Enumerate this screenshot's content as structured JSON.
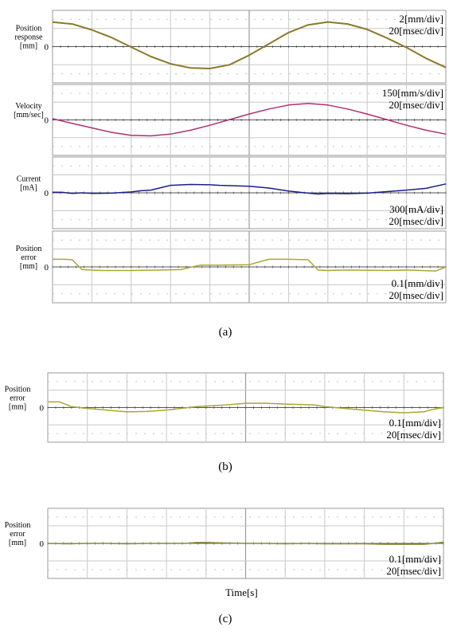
{
  "figure": {
    "captions": [
      "(a)",
      "(b)",
      "(c)"
    ],
    "x_axis_label": "Time[s]"
  },
  "colors": {
    "grid": "#c8c8c8",
    "dots": "#c4c4c4",
    "zero_axis": "#555555",
    "frame": "#999999",
    "position_response": "#8b7a2a",
    "velocity": "#b0306f",
    "current": "#1a1f8a",
    "position_error": "#a8a832"
  },
  "chart_data": [
    {
      "id": "a1",
      "type": "line",
      "ylabel": [
        "Position",
        "response",
        "[mm]"
      ],
      "zero_label": "0",
      "scale_labels": [
        "2[mm/div]",
        "20[msec/div]"
      ],
      "scale_pos": "top-right",
      "x_unit": "msec",
      "xlim": [
        0,
        200
      ],
      "y_unit": "mm",
      "ylim": [
        -4,
        4
      ],
      "series": [
        {
          "color": "#8b7a2a",
          "width": 2,
          "x": [
            0,
            10,
            20,
            30,
            40,
            50,
            60,
            70,
            80,
            90,
            100,
            110,
            120,
            130,
            140,
            150,
            160,
            170,
            180,
            190,
            200
          ],
          "y": [
            2.7,
            2.5,
            1.85,
            1.0,
            -0.05,
            -1.1,
            -1.9,
            -2.35,
            -2.42,
            -2.0,
            -0.95,
            0.3,
            1.55,
            2.4,
            2.72,
            2.5,
            1.9,
            0.95,
            -0.1,
            -1.3,
            -2.3
          ]
        }
      ]
    },
    {
      "id": "a2",
      "type": "line",
      "ylabel": [
        "Velocity",
        "[mm/sec]"
      ],
      "zero_label": "0",
      "scale_labels": [
        "150[mm/s/div]",
        "20[msec/div]"
      ],
      "scale_pos": "top-right",
      "x_unit": "msec",
      "xlim": [
        0,
        200
      ],
      "y_unit": "mm/s",
      "ylim": [
        -600,
        600
      ],
      "series": [
        {
          "color": "#b0306f",
          "width": 1.5,
          "x": [
            0,
            10,
            20,
            30,
            40,
            50,
            60,
            70,
            80,
            90,
            100,
            110,
            120,
            130,
            140,
            150,
            160,
            170,
            180,
            190,
            200
          ],
          "y": [
            20,
            -60,
            -135,
            -210,
            -262,
            -270,
            -240,
            -175,
            -90,
            5,
            100,
            185,
            252,
            278,
            252,
            185,
            100,
            5,
            -90,
            -175,
            -240
          ]
        }
      ]
    },
    {
      "id": "a3",
      "type": "line",
      "ylabel": [
        "Current",
        "[mA]"
      ],
      "zero_label": "0",
      "scale_labels": [
        "300[mA/div]",
        "20[msec/div]"
      ],
      "scale_pos": "bottom-right",
      "x_unit": "msec",
      "xlim": [
        0,
        200
      ],
      "y_unit": "mA",
      "ylim": [
        -1200,
        1200
      ],
      "series": [
        {
          "color": "#1a1f8a",
          "width": 1.5,
          "x": [
            0,
            5,
            10,
            15,
            20,
            30,
            40,
            45,
            50,
            60,
            70,
            80,
            85,
            90,
            100,
            110,
            120,
            130,
            135,
            140,
            150,
            160,
            170,
            180,
            190,
            200
          ],
          "y": [
            20,
            15,
            -20,
            0,
            -20,
            -10,
            30,
            70,
            90,
            250,
            280,
            270,
            250,
            240,
            220,
            160,
            60,
            -10,
            -40,
            -20,
            -30,
            -10,
            40,
            90,
            150,
            300
          ]
        }
      ]
    },
    {
      "id": "a4",
      "type": "line",
      "ylabel": [
        "Position",
        "error",
        "[mm]"
      ],
      "zero_label": "0",
      "scale_labels": [
        "0.1[mm/div]",
        "20[msec/div]"
      ],
      "scale_pos": "bottom-right",
      "x_unit": "msec",
      "xlim": [
        0,
        200
      ],
      "y_unit": "mm",
      "ylim": [
        -0.4,
        0.4
      ],
      "series": [
        {
          "color": "#a8a832",
          "width": 1.5,
          "x": [
            0,
            6,
            10,
            15,
            25,
            40,
            55,
            65,
            75,
            85,
            100,
            110,
            115,
            120,
            130,
            135,
            140,
            150,
            170,
            180,
            195,
            200
          ],
          "y": [
            0.085,
            0.085,
            0.08,
            -0.03,
            -0.04,
            -0.04,
            -0.035,
            -0.03,
            0.02,
            0.02,
            0.025,
            0.085,
            0.085,
            0.085,
            0.08,
            -0.035,
            -0.04,
            -0.035,
            -0.04,
            -0.035,
            -0.045,
            0.0
          ]
        }
      ]
    },
    {
      "id": "b",
      "type": "line",
      "ylabel": [
        "Position",
        "error",
        "[mm]"
      ],
      "zero_label": "0",
      "scale_labels": [
        "0.1[mm/div]",
        "20[msec/div]"
      ],
      "scale_pos": "bottom-right",
      "x_unit": "msec",
      "xlim": [
        0,
        200
      ],
      "y_unit": "mm",
      "ylim": [
        -0.4,
        0.4
      ],
      "series": [
        {
          "color": "#a8a832",
          "width": 1.5,
          "x": [
            0,
            6,
            12,
            20,
            40,
            50,
            60,
            75,
            90,
            100,
            110,
            120,
            135,
            140,
            150,
            160,
            170,
            180,
            190,
            195,
            200
          ],
          "y": [
            0.065,
            0.065,
            0.01,
            -0.01,
            -0.05,
            -0.045,
            -0.03,
            0.01,
            0.03,
            0.05,
            0.05,
            0.04,
            0.03,
            0.01,
            -0.01,
            -0.03,
            -0.05,
            -0.06,
            -0.05,
            -0.02,
            0.0
          ]
        }
      ]
    },
    {
      "id": "c",
      "type": "line",
      "ylabel": [
        "Position",
        "error",
        "[mm]"
      ],
      "zero_label": "0",
      "scale_labels": [
        "0.1[mm/div]",
        "20[msec/div]"
      ],
      "scale_pos": "bottom-right",
      "x_unit": "msec",
      "xlim": [
        0,
        200
      ],
      "y_unit": "mm",
      "ylim": [
        -0.4,
        0.4
      ],
      "series": [
        {
          "color": "#8a8a30",
          "width": 1.5,
          "x": [
            0,
            10,
            20,
            30,
            40,
            50,
            60,
            70,
            75,
            80,
            90,
            100,
            110,
            120,
            130,
            140,
            150,
            160,
            170,
            180,
            190,
            195,
            200
          ],
          "y": [
            0.0,
            -0.005,
            0.0,
            0.0,
            -0.005,
            0.0,
            0.0,
            0.0,
            0.01,
            0.01,
            0.005,
            0.0,
            0.0,
            -0.005,
            0.0,
            -0.005,
            -0.005,
            -0.005,
            -0.01,
            -0.01,
            -0.01,
            0.0,
            0.015
          ]
        }
      ]
    }
  ]
}
